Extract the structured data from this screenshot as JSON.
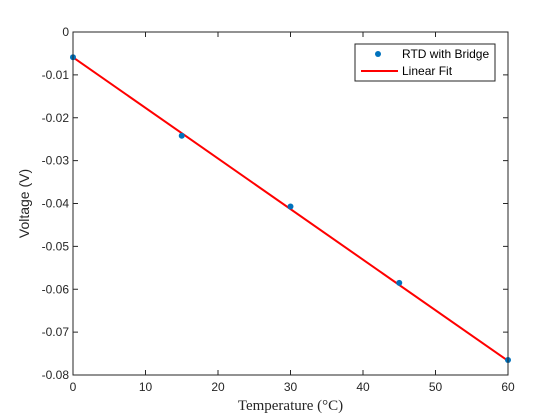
{
  "chart_data": {
    "type": "scatter",
    "xlabel": "Temperature (°C)",
    "ylabel": "Voltage (V)",
    "xlim": [
      0,
      60
    ],
    "ylim": [
      -0.08,
      0
    ],
    "x_ticks": [
      0,
      10,
      20,
      30,
      40,
      50,
      60
    ],
    "y_ticks": [
      0,
      -0.01,
      -0.02,
      -0.03,
      -0.04,
      -0.05,
      -0.06,
      -0.07,
      -0.08
    ],
    "x_tick_labels": [
      "0",
      "10",
      "20",
      "30",
      "40",
      "50",
      "60"
    ],
    "y_tick_labels": [
      "0",
      "-0.01",
      "-0.02",
      "-0.03",
      "-0.04",
      "-0.05",
      "-0.06",
      "-0.07",
      "-0.08"
    ],
    "grid": false,
    "legend_position": "top-right",
    "series": [
      {
        "name": "RTD with Bridge",
        "kind": "scatter",
        "color": "#0072BD",
        "x": [
          0,
          15,
          30,
          45,
          60
        ],
        "y": [
          -0.0059,
          -0.0242,
          -0.0407,
          -0.0585,
          -0.0765
        ]
      },
      {
        "name": "Linear Fit",
        "kind": "line",
        "color": "#FF0000",
        "x": [
          0,
          60
        ],
        "y": [
          -0.0059,
          -0.0767
        ]
      }
    ]
  }
}
